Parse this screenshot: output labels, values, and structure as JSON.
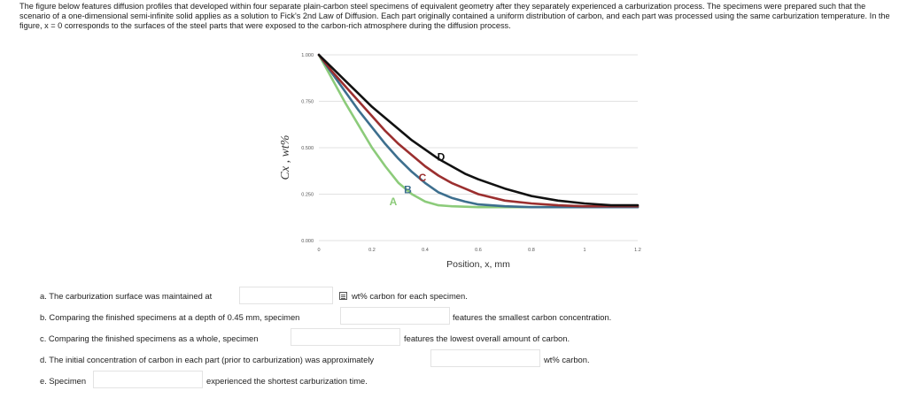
{
  "intro": "The figure below features diffusion profiles that developed within four separate plain-carbon steel specimens of equivalent geometry after they separately experienced a carburization process. The specimens were prepared such that the scenario of a one-dimensional semi-infinite solid applies as a solution to Fick's 2nd Law of Diffusion. Each part originally contained a uniform distribution of carbon, and each part was processed using the same carburization temperature. In the figure, x = 0 corresponds to the surfaces of the steel parts that were exposed to the carbon-rich atmosphere during the diffusion process.",
  "chart_data": {
    "type": "line",
    "xlabel": "Position, x, mm",
    "ylabel": "Cx , wt%",
    "xlim": [
      0,
      1.2
    ],
    "ylim": [
      0,
      1.0
    ],
    "x_ticks": [
      "0",
      "0.2",
      "0.4",
      "0.6",
      "0.8",
      "1",
      "1.2"
    ],
    "y_ticks": [
      "0.000",
      "0.250",
      "0.500",
      "0.750",
      "1.000"
    ],
    "grid": "horizontal",
    "series": [
      {
        "name": "A",
        "color": "#8ccb7a",
        "x": [
          0,
          0.05,
          0.1,
          0.15,
          0.2,
          0.25,
          0.3,
          0.35,
          0.4,
          0.45,
          0.5,
          0.6,
          0.7,
          0.8,
          1.0,
          1.2
        ],
        "y": [
          1.0,
          0.87,
          0.74,
          0.62,
          0.5,
          0.4,
          0.31,
          0.25,
          0.21,
          0.19,
          0.185,
          0.18,
          0.18,
          0.18,
          0.18,
          0.18
        ]
      },
      {
        "name": "B",
        "color": "#3d6f8e",
        "x": [
          0,
          0.05,
          0.1,
          0.15,
          0.2,
          0.25,
          0.3,
          0.35,
          0.4,
          0.45,
          0.5,
          0.55,
          0.6,
          0.7,
          0.8,
          1.0,
          1.2
        ],
        "y": [
          1.0,
          0.9,
          0.8,
          0.7,
          0.61,
          0.52,
          0.44,
          0.37,
          0.31,
          0.26,
          0.23,
          0.21,
          0.195,
          0.185,
          0.18,
          0.18,
          0.18
        ]
      },
      {
        "name": "C",
        "color": "#9b2f2f",
        "x": [
          0,
          0.05,
          0.1,
          0.15,
          0.2,
          0.25,
          0.3,
          0.35,
          0.4,
          0.45,
          0.5,
          0.55,
          0.6,
          0.7,
          0.8,
          0.9,
          1.0,
          1.2
        ],
        "y": [
          1.0,
          0.91,
          0.83,
          0.75,
          0.67,
          0.59,
          0.52,
          0.46,
          0.4,
          0.35,
          0.31,
          0.28,
          0.25,
          0.215,
          0.2,
          0.19,
          0.185,
          0.185
        ]
      },
      {
        "name": "D",
        "color": "#111111",
        "x": [
          0,
          0.05,
          0.1,
          0.15,
          0.2,
          0.25,
          0.3,
          0.35,
          0.4,
          0.45,
          0.5,
          0.55,
          0.6,
          0.7,
          0.8,
          0.9,
          1.0,
          1.1,
          1.2
        ],
        "y": [
          1.0,
          0.93,
          0.86,
          0.79,
          0.72,
          0.66,
          0.6,
          0.54,
          0.49,
          0.44,
          0.4,
          0.36,
          0.33,
          0.28,
          0.24,
          0.215,
          0.2,
          0.19,
          0.19
        ]
      }
    ],
    "labels": [
      {
        "text": "A",
        "x": 0.28,
        "y": 0.19,
        "color": "#8ccb7a"
      },
      {
        "text": "B",
        "x": 0.335,
        "y": 0.255,
        "color": "#3d6f8e"
      },
      {
        "text": "C",
        "x": 0.39,
        "y": 0.32,
        "color": "#9b2f2f"
      },
      {
        "text": "D",
        "x": 0.46,
        "y": 0.43,
        "color": "#111111"
      }
    ]
  },
  "questions": {
    "a_before": "a. The carburization surface was maintained at",
    "a_after": "wt% carbon for each specimen.",
    "b_before": "b. Comparing the finished specimens at a depth of 0.45 mm, specimen",
    "b_after": "features the smallest carbon concentration.",
    "c_before": "c. Comparing the finished specimens as a whole, specimen",
    "c_after": "features the lowest overall amount of carbon.",
    "d_before": "d. The initial concentration of carbon in each part (prior to carburization) was approximately",
    "d_after": "wt% carbon.",
    "e_before": "e. Specimen",
    "e_after": "experienced the shortest carburization time."
  }
}
